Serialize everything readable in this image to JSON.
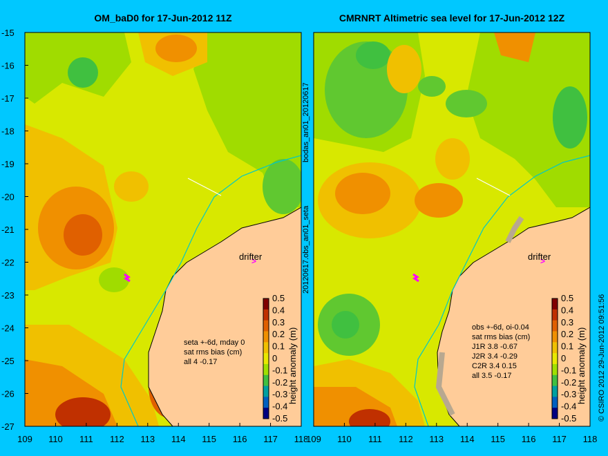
{
  "left_panel": {
    "title": "OM_baD0 for 17-Jun-2012 11Z",
    "drifter_label": "drifter",
    "stats": [
      "seta +-6d, mday 0",
      "sat rms bias (cm)",
      "all 4 -0.17"
    ],
    "colorbar_label": "height anomaly (m)"
  },
  "right_panel": {
    "title": "CMRNRT Altimetric sea level  for 17-Jun-2012 12Z",
    "drifter_label": "drifter",
    "stats": [
      "obs +-6d, oi-0.04",
      "sat rms bias (cm)",
      "J1R   3.8 -0.67",
      "J2R   3.4 -0.29",
      "C2R   3.4  0.15",
      "all 3.5 -0.17"
    ],
    "colorbar_label": "height anomaly (m)"
  },
  "side_labels": {
    "middle_top": "bodas_an01_20120617",
    "middle_bottom": "20120617.obs_an01_seta",
    "right_edge": "© CSIRO 2012   29-Jun-2012 09:51:56"
  },
  "axes": {
    "lon_ticks": [
      "109",
      "110",
      "111",
      "112",
      "113",
      "114",
      "115",
      "116",
      "117",
      "118"
    ],
    "lat_ticks": [
      "-15",
      "-16",
      "-17",
      "-18",
      "-19",
      "-20",
      "-21",
      "-22",
      "-23",
      "-24",
      "-25",
      "-26",
      "-27"
    ]
  },
  "colorbar": {
    "ticks": [
      "0.5",
      "0.4",
      "0.3",
      "0.2",
      "0.1",
      "0",
      "-0.1",
      "-0.2",
      "-0.3",
      "-0.4",
      "-0.5"
    ],
    "colors": [
      "#800000",
      "#c03000",
      "#e06000",
      "#f09000",
      "#f0c000",
      "#e8e800",
      "#a0e000",
      "#40c040",
      "#00a0a0",
      "#0060c0",
      "#000080"
    ]
  },
  "colors": {
    "background": "#00c8ff",
    "land": "#ffcc99",
    "coastline": "#000000",
    "shelf_contour": "#00c8c8",
    "drifter_marker": "#ff00ff"
  }
}
